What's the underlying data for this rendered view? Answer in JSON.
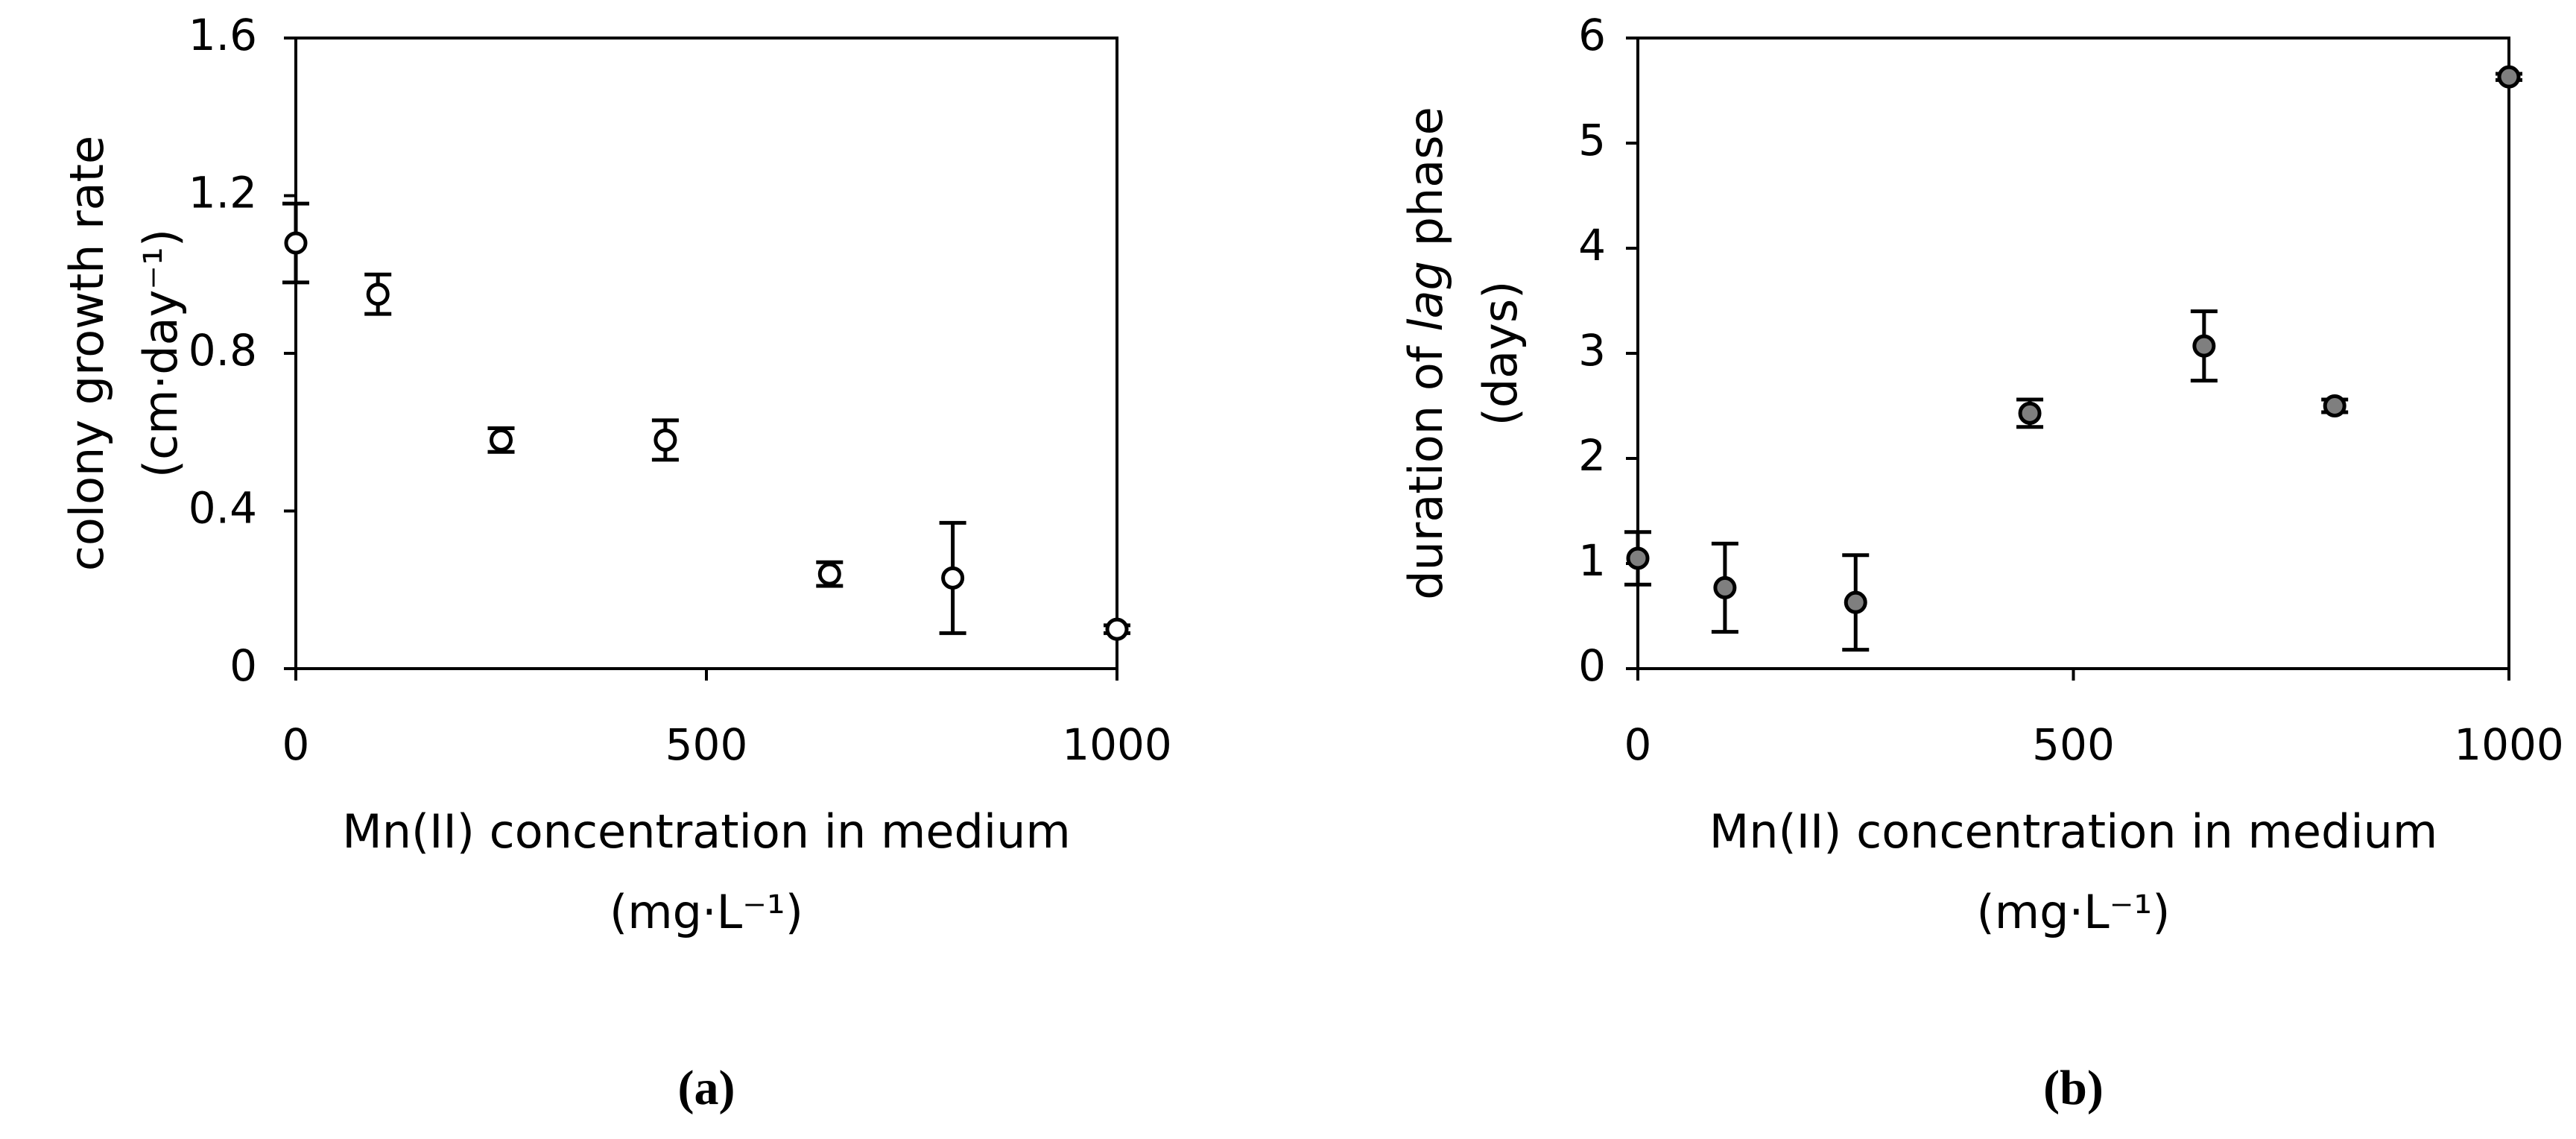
{
  "chart_data": [
    {
      "type": "scatter",
      "ylabel": [
        "colony growth rate",
        "(cm·day⁻¹)"
      ],
      "xlabel": [
        "Mn(II) concentration in medium",
        "(mg·L⁻¹)"
      ],
      "panel": "(a)",
      "x": [
        0,
        100,
        250,
        450,
        650,
        800,
        1000
      ],
      "values": [
        1.08,
        0.95,
        0.58,
        0.58,
        0.24,
        0.23,
        0.1
      ],
      "errors": [
        0.1,
        0.05,
        0.03,
        0.05,
        0.03,
        0.14,
        0.01
      ],
      "color": "#ffffff",
      "xlim": [
        0,
        1000
      ],
      "xticks": [
        0,
        500,
        1000
      ],
      "ylim": [
        0,
        1.6
      ],
      "yticks": [
        0,
        0.4,
        0.8,
        1.2,
        1.6
      ]
    },
    {
      "type": "scatter",
      "ylabel": [
        [
          "duration of ",
          "lag",
          " phase"
        ],
        "(days)"
      ],
      "xlabel": [
        "Mn(II) concentration in medium",
        "(mg·L⁻¹)"
      ],
      "panel": "(b)",
      "x": [
        0,
        100,
        250,
        450,
        650,
        800,
        1000
      ],
      "values": [
        1.05,
        0.77,
        0.63,
        2.43,
        3.07,
        2.5,
        5.63
      ],
      "errors": [
        0.25,
        0.42,
        0.45,
        0.13,
        0.33,
        0.06,
        0.03
      ],
      "color": "#7f7f7f",
      "xlim": [
        0,
        1000
      ],
      "xticks": [
        0,
        500,
        1000
      ],
      "ylim": [
        0,
        6
      ],
      "yticks": [
        0,
        1,
        2,
        3,
        4,
        5,
        6
      ]
    }
  ]
}
